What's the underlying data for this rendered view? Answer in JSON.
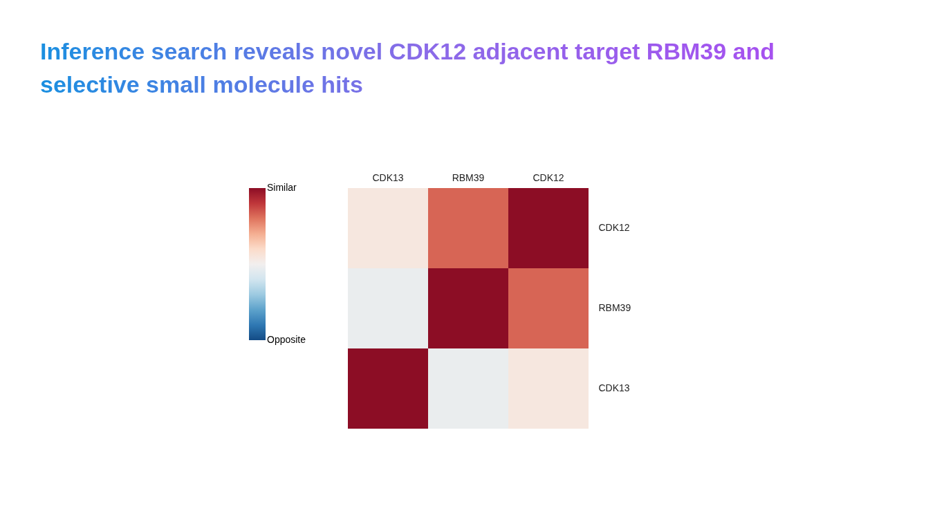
{
  "chart_data": {
    "type": "heatmap",
    "title": "Inference search reveals novel CDK12 adjacent target RBM39 and selective small molecule hits",
    "categories": [
      "CDK13",
      "RBM39",
      "CDK12"
    ],
    "y_categories": [
      "CDK12",
      "RBM39",
      "CDK13"
    ],
    "cells": [
      [
        0.08,
        0.65,
        1
      ],
      [
        -0.05,
        1,
        0.65
      ],
      [
        1,
        -0.05,
        0.08
      ]
    ],
    "clim": [
      -1,
      1
    ],
    "cticks": [
      {
        "value": 1,
        "label": "Similar"
      },
      {
        "value": -1,
        "label": "Opposite"
      }
    ]
  }
}
